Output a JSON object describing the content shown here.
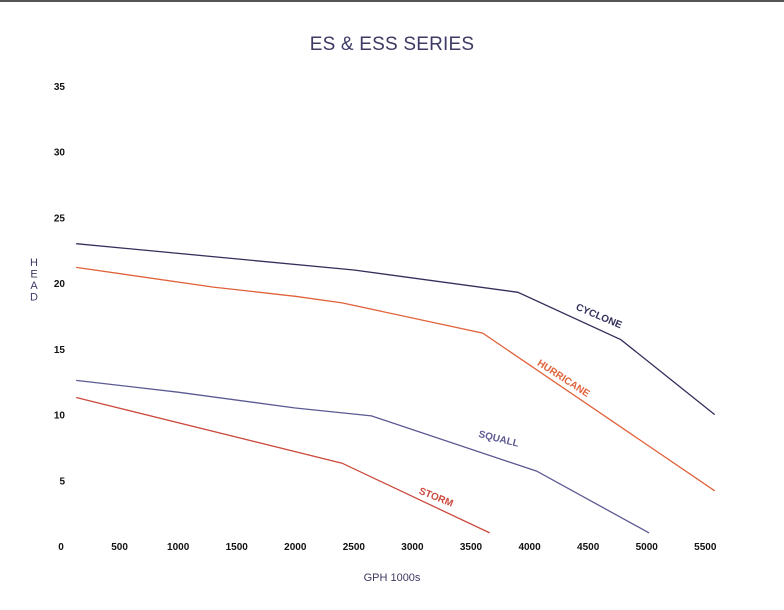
{
  "chart_data": {
    "type": "line",
    "title": "ES & ESS SERIES",
    "xlabel": "GPH 1000s",
    "ylabel": "HEAD",
    "xlim": [
      0,
      5600
    ],
    "ylim": [
      0,
      35
    ],
    "x_ticks": [
      "0",
      "500",
      "1000",
      "1500",
      "2000",
      "2500",
      "3000",
      "3500",
      "4000",
      "4500",
      "5000",
      "5500"
    ],
    "x_tick_values": [
      0,
      500,
      1000,
      1500,
      2000,
      2500,
      3000,
      3500,
      4000,
      4500,
      5000,
      5500
    ],
    "y_ticks": [
      "35",
      "30",
      "25",
      "20",
      "15",
      "10",
      "5"
    ],
    "y_tick_values": [
      35,
      30,
      25,
      20,
      15,
      10,
      5
    ],
    "grid": false,
    "legend": "none",
    "series": [
      {
        "name": "CYCLONE",
        "color": "#33305c",
        "points": [
          [
            130,
            23.0
          ],
          [
            2500,
            21.0
          ],
          [
            3900,
            19.3
          ],
          [
            4780,
            15.7
          ],
          [
            5580,
            10.0
          ]
        ],
        "label_at": [
          4390,
          18.0
        ],
        "label_angle": 23
      },
      {
        "name": "HURRICANE",
        "color": "#e0623a",
        "points": [
          [
            130,
            21.2
          ],
          [
            1300,
            19.7
          ],
          [
            2000,
            19.0
          ],
          [
            2400,
            18.5
          ],
          [
            3600,
            16.2
          ],
          [
            5580,
            4.2
          ]
        ],
        "label_at": [
          4060,
          13.8
        ],
        "label_angle": 33
      },
      {
        "name": "SQUALL",
        "color": "#5c5a92",
        "points": [
          [
            130,
            12.6
          ],
          [
            1000,
            11.7
          ],
          [
            2000,
            10.5
          ],
          [
            2650,
            9.9
          ],
          [
            4060,
            5.7
          ],
          [
            5020,
            1.0
          ]
        ],
        "label_at": [
          3560,
          8.3
        ],
        "label_angle": 14
      },
      {
        "name": "STORM",
        "color": "#cc4a3e",
        "points": [
          [
            130,
            11.3
          ],
          [
            2400,
            6.3
          ],
          [
            3660,
            1.0
          ]
        ],
        "label_at": [
          3050,
          4.0
        ],
        "label_angle": 22
      }
    ]
  }
}
